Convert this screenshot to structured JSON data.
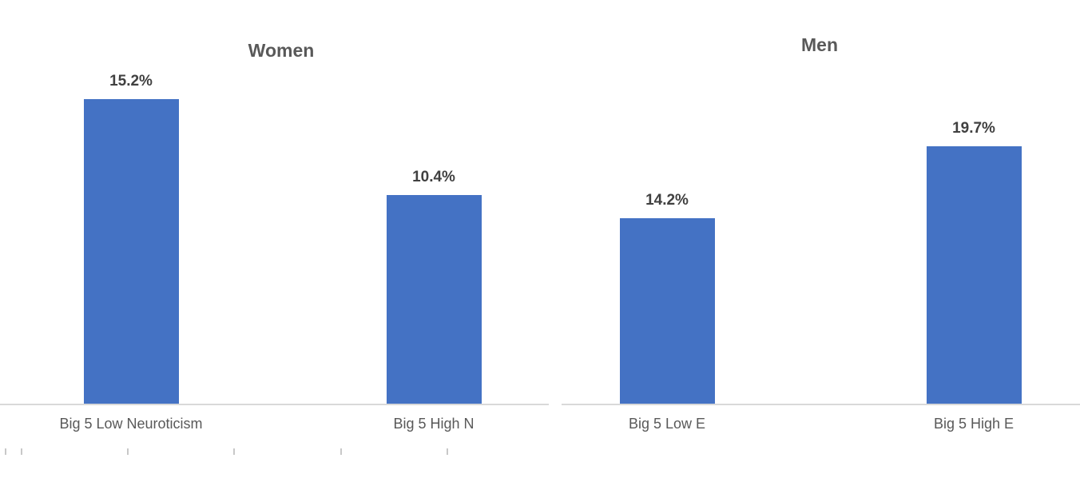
{
  "colors": {
    "bar_fill": "#4472C4",
    "title_text": "#595959",
    "data_label_text": "#404040",
    "category_label_text": "#595959",
    "axis_line": "#D9D9D9",
    "background": "#FFFFFF"
  },
  "chart_data": [
    {
      "type": "bar",
      "title": "Women",
      "categories": [
        "Big 5 Low Neuroticism",
        "Big 5 High N"
      ],
      "values": [
        15.2,
        10.4
      ],
      "value_labels": [
        "15.2%",
        "10.4%"
      ],
      "unit": "percent",
      "xlabel": "",
      "ylabel": "",
      "y_axis_visible": false,
      "gridlines": false,
      "legend_position": "none",
      "data_labels": "above bars",
      "bar_color": "#4472C4"
    },
    {
      "type": "bar",
      "title": "Men",
      "categories": [
        "Big 5 Low E",
        "Big 5 High E"
      ],
      "values": [
        14.2,
        19.7
      ],
      "value_labels": [
        "14.2%",
        "19.7%"
      ],
      "unit": "percent",
      "xlabel": "",
      "ylabel": "",
      "y_axis_visible": false,
      "gridlines": false,
      "legend_position": "none",
      "data_labels": "above bars",
      "bar_color": "#4472C4"
    }
  ]
}
